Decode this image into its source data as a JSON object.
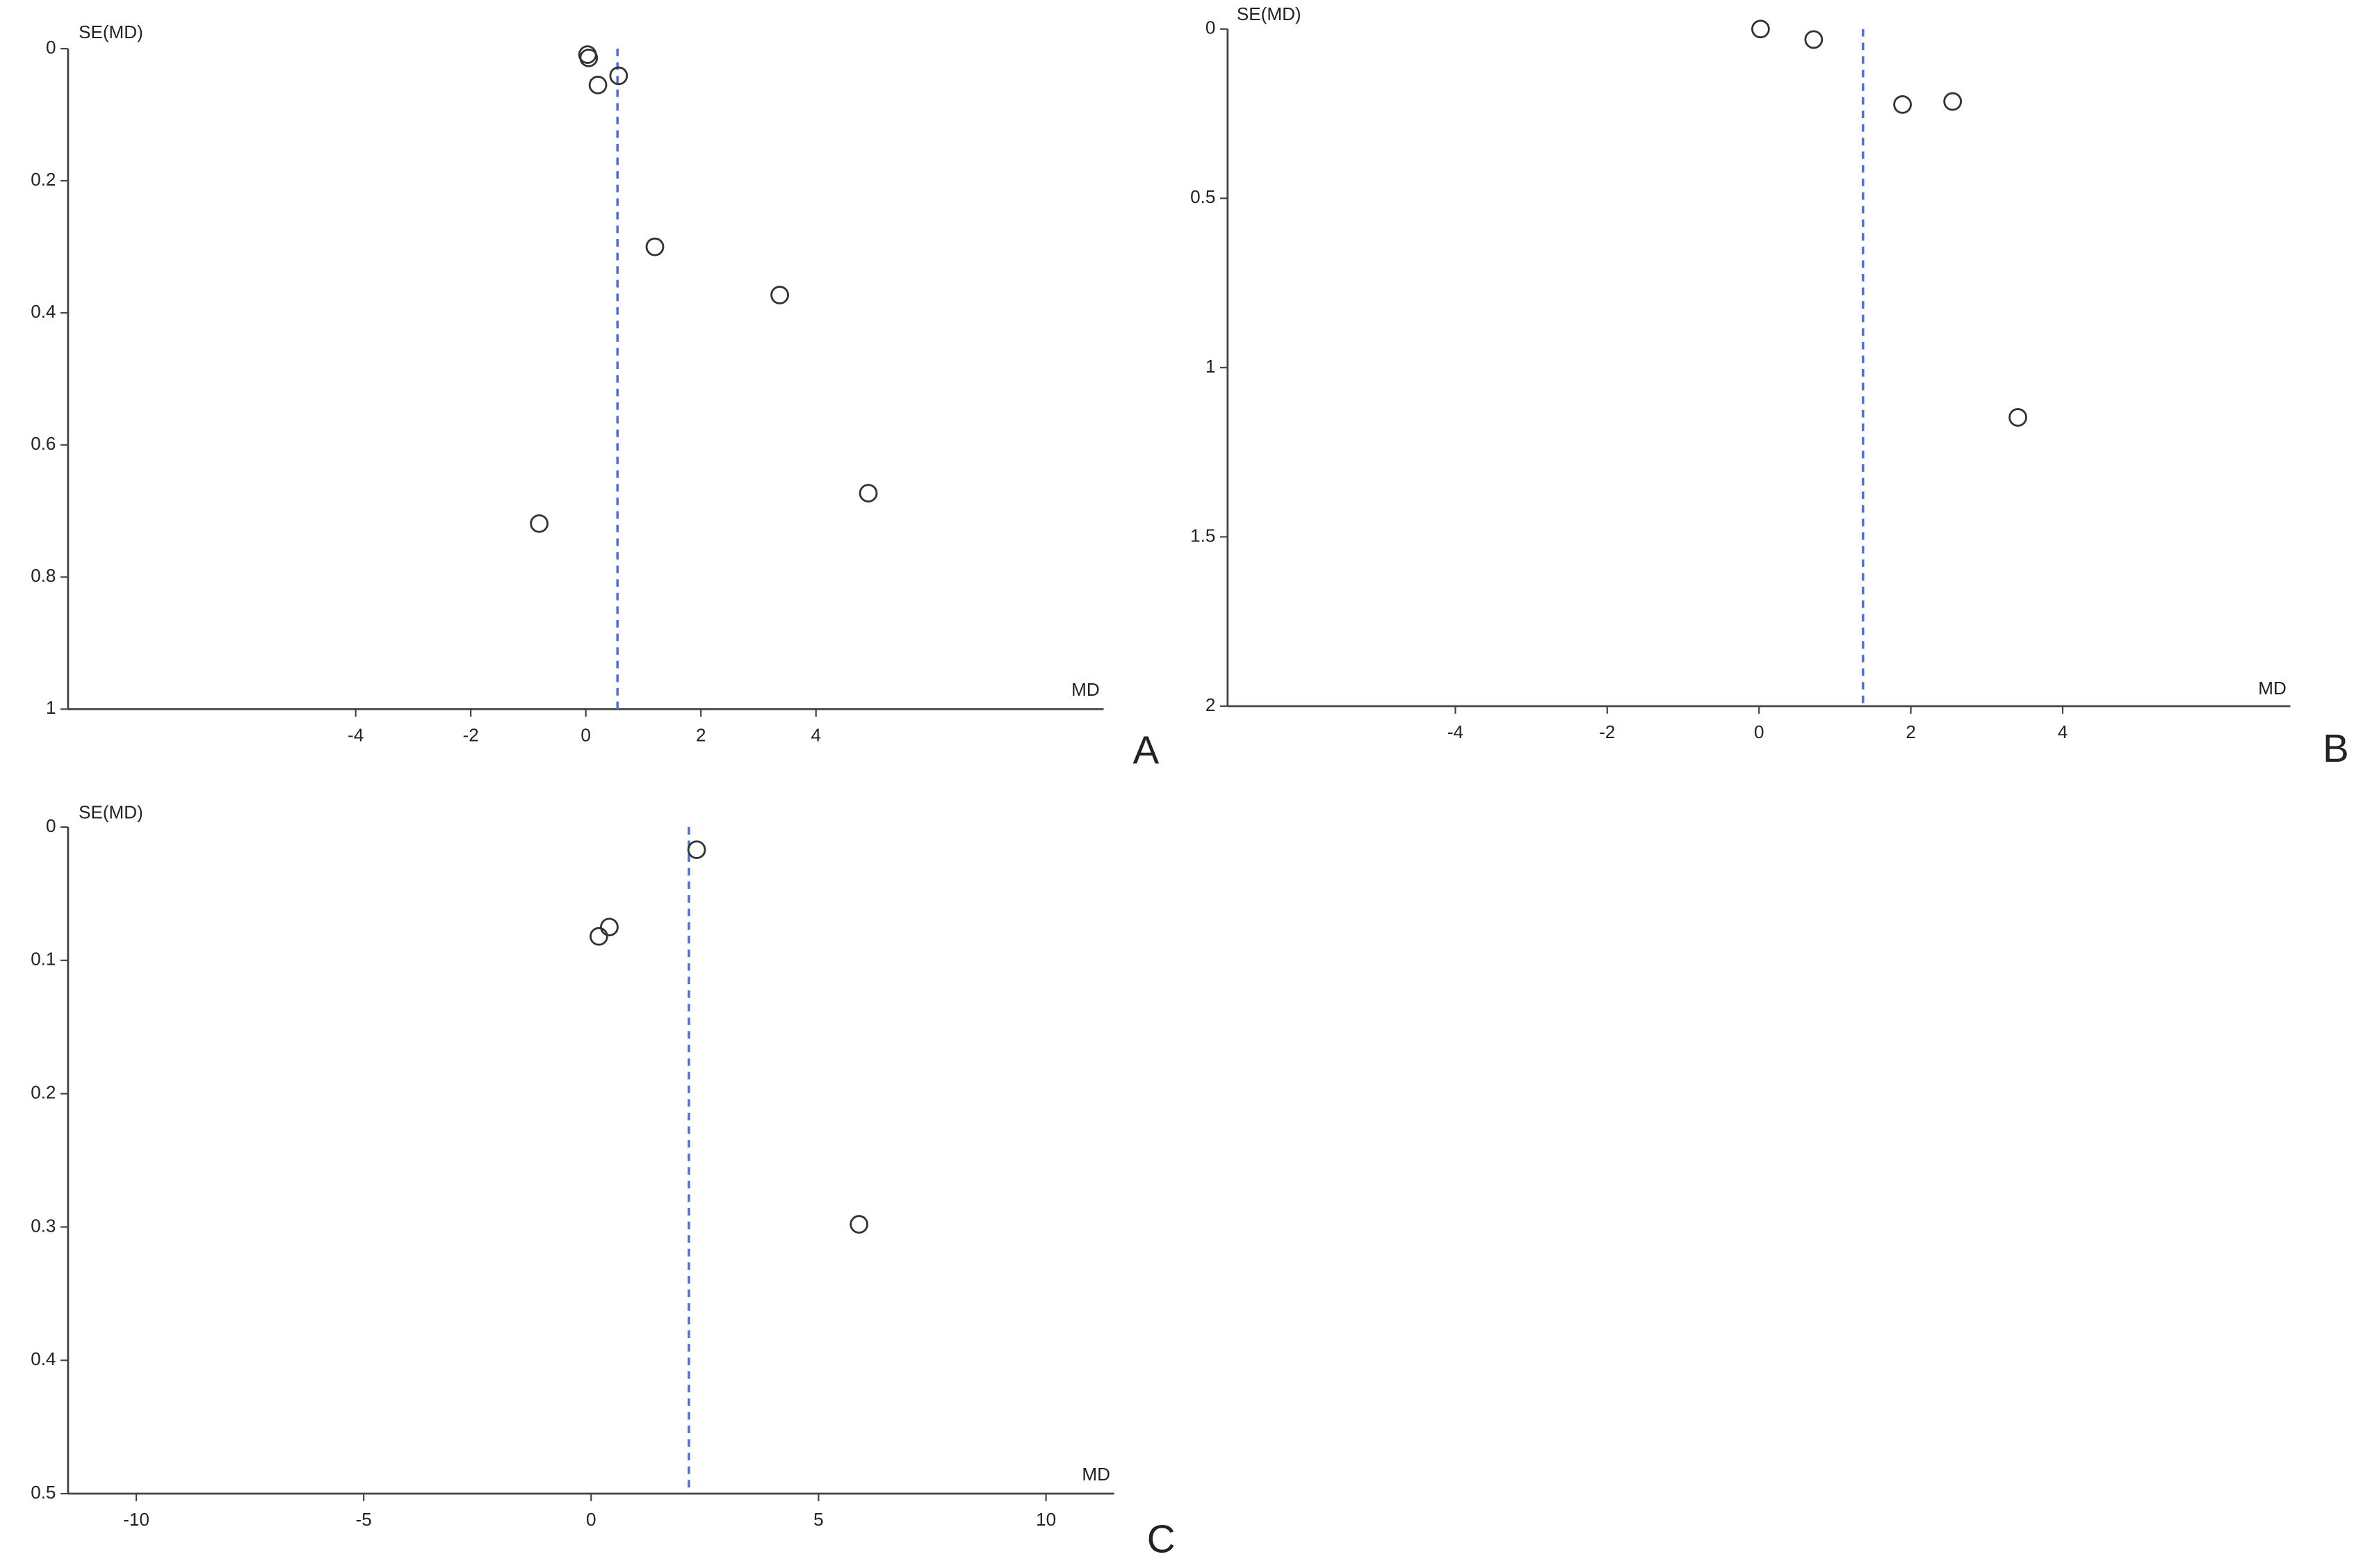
{
  "chart_data": [
    {
      "type": "scatter",
      "label": "A",
      "xlabel": "MD",
      "ylabel": "SE(MD)",
      "x": [
        0.03,
        0.05,
        0.21,
        0.57,
        1.2,
        3.37,
        4.91,
        -0.81
      ],
      "values": [
        0.009,
        0.014,
        0.055,
        0.041,
        0.3,
        0.373,
        0.673,
        0.719
      ],
      "reference_line": 0.55,
      "color": "#333333",
      "reference_color": "#4a6ee0",
      "xlim": [
        -9,
        9
      ],
      "ylim": [
        0,
        1
      ],
      "xticks": [
        -4,
        -2,
        0,
        2,
        4
      ],
      "yticks": [
        0,
        0.2,
        0.4,
        0.6,
        0.8,
        1
      ],
      "y_inverted": true
    },
    {
      "type": "scatter",
      "label": "B",
      "xlabel": "MD",
      "ylabel": "SE(MD)",
      "x": [
        0.02,
        0.72,
        1.89,
        2.55,
        3.41
      ],
      "values": [
        0.0,
        0.031,
        0.223,
        0.214,
        1.147
      ],
      "reference_line": 1.37,
      "color": "#333333",
      "reference_color": "#4a6ee0",
      "xlim": [
        -7,
        7
      ],
      "ylim": [
        0,
        2
      ],
      "xticks": [
        -4,
        -2,
        0,
        2,
        4
      ],
      "yticks": [
        0,
        0.5,
        1,
        1.5,
        2
      ],
      "y_inverted": true
    },
    {
      "type": "scatter",
      "label": "C",
      "xlabel": "MD",
      "ylabel": "SE(MD)",
      "x": [
        2.32,
        0.4,
        0.17,
        5.89
      ],
      "values": [
        0.017,
        0.075,
        0.082,
        0.298
      ],
      "reference_line": 2.15,
      "color": "#333333",
      "reference_color": "#4a6ee0",
      "xlim": [
        -11.5,
        11.5
      ],
      "ylim": [
        0,
        0.5
      ],
      "xticks": [
        -10,
        -5,
        0,
        5,
        10
      ],
      "yticks": [
        0,
        0.1,
        0.2,
        0.3,
        0.4,
        0.5
      ],
      "y_inverted": true
    }
  ]
}
